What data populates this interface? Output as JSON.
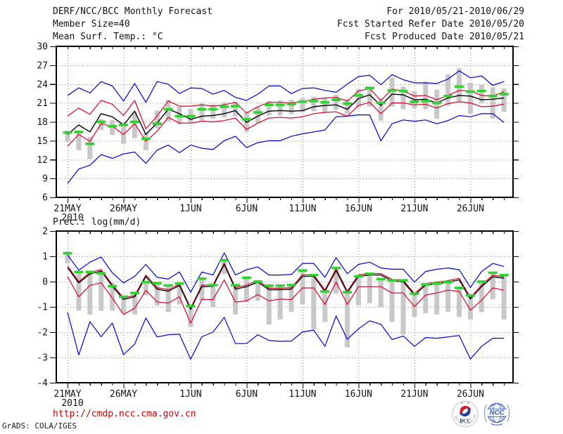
{
  "header": {
    "title": "DERF/NCC/BCC Monthly Forecast",
    "member_size": "Member Size=40",
    "period": "For 2010/05/21-2010/06/29",
    "refer_date": "Fcst Started Refer Date 2010/05/20",
    "produced_date": "Fcst Produced Date 2010/05/21"
  },
  "footer": {
    "url": "http://cmdp.ncc.cma.gov.cn",
    "credit": "GrADS: COLA/IGES",
    "logos": [
      {
        "label": "BCC",
        "ring_text": "BEIJING CLIMATE CENTER",
        "accent_red": "#d0202a",
        "accent_blue": "#1f3f9f"
      },
      {
        "label": "NCC",
        "color": "#2b50bf"
      }
    ]
  },
  "colors": {
    "envelope": "#0000d8",
    "spread": "#dc0028",
    "mean": "#000000",
    "obs": "#2fd32f",
    "bar": "#c8c8c8",
    "grid": "#8c8c8c",
    "frame": "#000000",
    "text": "#141414"
  },
  "chart_data": [
    {
      "type": "line",
      "title": "Mean Surf. Temp.: °C",
      "x_start": "2010/05/21",
      "x_end": "2010/06/29",
      "n_points": 40,
      "grid": true,
      "ylim": [
        6,
        30
      ],
      "yticks": [
        30,
        27,
        24,
        21,
        18,
        15,
        12,
        9,
        6
      ],
      "x_ticks": [
        {
          "label": "21MAY",
          "sub": "2010",
          "day": 0
        },
        {
          "label": "26MAY",
          "day": 5
        },
        {
          "label": "1JUN",
          "day": 11
        },
        {
          "label": "6JUN",
          "day": 16
        },
        {
          "label": "11JUN",
          "day": 21
        },
        {
          "label": "16JUN",
          "day": 26
        },
        {
          "label": "21JUN",
          "day": 31
        },
        {
          "label": "26JUN",
          "day": 36
        }
      ],
      "series": [
        {
          "name": "ensemble-max",
          "color": "#0000d8",
          "width": 1.2,
          "values": [
            22.2,
            23.4,
            22.6,
            24.4,
            23.7,
            21.3,
            24.1,
            21.1,
            24.4,
            24.0,
            22.5,
            23.4,
            23.3,
            22.4,
            23.0,
            21.9,
            21.4,
            22.4,
            23.7,
            23.7,
            22.5,
            23.3,
            23.4,
            23.0,
            22.7,
            24.0,
            25.2,
            25.4,
            23.9,
            25.5,
            24.7,
            24.2,
            24.2,
            24.1,
            24.8,
            26.1,
            25.0,
            25.3,
            23.8,
            24.4
          ]
        },
        {
          "name": "upper-spread",
          "color": "#dc0028",
          "width": 1.2,
          "values": [
            18.9,
            20.2,
            19.2,
            21.4,
            20.8,
            19.0,
            21.4,
            16.9,
            18.9,
            21.3,
            20.5,
            20.5,
            20.7,
            20.5,
            20.7,
            21.1,
            19.4,
            20.4,
            21.1,
            21.1,
            21.0,
            21.2,
            21.6,
            21.8,
            21.9,
            21.3,
            22.9,
            23.3,
            21.4,
            23.2,
            22.9,
            22.1,
            22.2,
            21.5,
            22.2,
            23.0,
            22.9,
            22.2,
            22.1,
            22.8
          ]
        },
        {
          "name": "ensemble-mean",
          "color": "#000000",
          "width": 1.4,
          "values": [
            16.0,
            17.5,
            16.4,
            19.3,
            18.8,
            17.5,
            19.7,
            16.0,
            17.8,
            20.0,
            19.3,
            18.4,
            18.9,
            19.0,
            19.3,
            19.8,
            17.9,
            18.9,
            19.7,
            19.8,
            19.7,
            19.8,
            20.4,
            20.6,
            20.7,
            20.0,
            21.7,
            22.3,
            20.6,
            22.4,
            22.3,
            21.5,
            21.6,
            21.0,
            21.8,
            22.2,
            22.1,
            21.5,
            21.6,
            21.8
          ]
        },
        {
          "name": "lower-spread",
          "color": "#dc0028",
          "width": 1.2,
          "values": [
            14.1,
            16.0,
            14.9,
            17.7,
            17.3,
            16.0,
            17.7,
            14.9,
            16.5,
            18.7,
            17.8,
            17.8,
            18.1,
            18.0,
            18.2,
            18.6,
            16.8,
            17.8,
            18.6,
            18.7,
            18.6,
            18.8,
            19.3,
            19.5,
            19.6,
            18.9,
            20.6,
            21.1,
            19.3,
            21.0,
            21.0,
            20.7,
            20.8,
            20.2,
            20.9,
            21.2,
            21.0,
            20.4,
            20.5,
            20.8
          ]
        },
        {
          "name": "ensemble-min",
          "color": "#0000d8",
          "width": 1.2,
          "values": [
            8.2,
            10.5,
            11.1,
            12.8,
            12.2,
            12.9,
            13.2,
            11.4,
            13.5,
            14.3,
            13.1,
            14.3,
            13.8,
            13.6,
            15.0,
            15.7,
            13.9,
            14.7,
            15.0,
            15.0,
            15.7,
            16.1,
            16.4,
            16.7,
            18.8,
            18.9,
            19.1,
            19.1,
            15.0,
            17.7,
            18.3,
            18.1,
            18.3,
            17.7,
            18.2,
            19.0,
            18.8,
            19.3,
            19.3,
            17.9
          ]
        }
      ],
      "markers": {
        "name": "climatology-dash",
        "color": "#2fd32f",
        "values": [
          16.3,
          16.4,
          14.5,
          18.0,
          17.3,
          17.5,
          18.0,
          15.3,
          17.7,
          20.0,
          18.9,
          18.9,
          20.0,
          20.0,
          20.4,
          20.5,
          18.4,
          19.5,
          20.7,
          20.7,
          20.8,
          21.2,
          21.3,
          21.1,
          21.5,
          20.9,
          22.2,
          23.4,
          21.0,
          23.0,
          22.9,
          21.2,
          21.3,
          21.0,
          22.1,
          23.6,
          22.8,
          22.9,
          22.1,
          22.4
        ]
      },
      "bars": {
        "name": "climatology-range",
        "color": "#c8c8c8",
        "ranges": [
          [
            14.8,
            16.6
          ],
          [
            13.5,
            16.5
          ],
          [
            12.1,
            15.6
          ],
          [
            16.7,
            18.4
          ],
          [
            15.9,
            18.3
          ],
          [
            14.5,
            17.8
          ],
          [
            15.4,
            19.5
          ],
          [
            13.5,
            16.2
          ],
          [
            17.0,
            19.8
          ],
          [
            18.1,
            21.5
          ],
          [
            17.6,
            20.4
          ],
          [
            17.8,
            20.0
          ],
          [
            18.2,
            21.0
          ],
          [
            18.5,
            20.8
          ],
          [
            18.7,
            21.1
          ],
          [
            18.9,
            21.2
          ],
          [
            16.4,
            19.5
          ],
          [
            17.8,
            20.4
          ],
          [
            19.0,
            21.3
          ],
          [
            19.0,
            21.4
          ],
          [
            19.2,
            21.5
          ],
          [
            19.5,
            21.8
          ],
          [
            19.7,
            22.0
          ],
          [
            19.5,
            21.8
          ],
          [
            19.9,
            22.3
          ],
          [
            19.3,
            21.6
          ],
          [
            20.3,
            23.2
          ],
          [
            20.4,
            23.6
          ],
          [
            18.2,
            21.7
          ],
          [
            20.4,
            25.0
          ],
          [
            20.0,
            23.6
          ],
          [
            20.2,
            22.9
          ],
          [
            20.0,
            24.4
          ],
          [
            18.5,
            23.1
          ],
          [
            20.6,
            25.5
          ],
          [
            21.1,
            26.5
          ],
          [
            19.3,
            24.2
          ],
          [
            21.0,
            23.9
          ],
          [
            18.5,
            23.5
          ],
          [
            19.6,
            23.3
          ]
        ]
      }
    },
    {
      "type": "line",
      "title": "Prec.: log(mm/d)",
      "x_start": "2010/05/21",
      "x_end": "2010/06/29",
      "n_points": 40,
      "grid": true,
      "ylim": [
        -4,
        2
      ],
      "yticks": [
        2,
        1,
        0,
        -1,
        -2,
        -3,
        -4
      ],
      "x_ticks": [
        {
          "label": "21MAY",
          "sub": "2010",
          "day": 0
        },
        {
          "label": "26MAY",
          "day": 5
        },
        {
          "label": "1JUN",
          "day": 11
        },
        {
          "label": "6JUN",
          "day": 16
        },
        {
          "label": "11JUN",
          "day": 21
        },
        {
          "label": "16JUN",
          "day": 26
        },
        {
          "label": "21JUN",
          "day": 31
        },
        {
          "label": "26JUN",
          "day": 36
        }
      ],
      "series": [
        {
          "name": "ensemble-max",
          "color": "#0000d8",
          "width": 1.2,
          "values": [
            1.05,
            0.45,
            0.77,
            0.97,
            0.35,
            -0.05,
            0.21,
            0.68,
            0.17,
            0.1,
            0.38,
            -0.42,
            0.38,
            0.26,
            1.14,
            0.26,
            0.47,
            0.58,
            0.26,
            0.26,
            0.28,
            0.72,
            0.72,
            0.17,
            0.95,
            0.31,
            0.68,
            0.77,
            0.54,
            0.49,
            0.49,
            -0.02,
            0.4,
            0.49,
            0.54,
            0.47,
            -0.23,
            0.4,
            0.72,
            0.6
          ]
        },
        {
          "name": "upper-spread",
          "color": "#dc0028",
          "width": 1.2,
          "values": [
            0.62,
            0.0,
            0.36,
            0.48,
            -0.12,
            -0.64,
            -0.55,
            0.26,
            -0.24,
            -0.32,
            -0.1,
            -1.04,
            -0.14,
            -0.13,
            0.73,
            -0.24,
            -0.14,
            0.04,
            -0.26,
            -0.26,
            -0.24,
            0.27,
            0.27,
            -0.33,
            0.5,
            -0.38,
            0.27,
            0.32,
            0.32,
            0.09,
            0.05,
            -0.47,
            -0.08,
            -0.02,
            0.04,
            0.13,
            -0.63,
            -0.14,
            0.25,
            0.2
          ]
        },
        {
          "name": "ensemble-mean",
          "color": "#000000",
          "width": 1.4,
          "values": [
            0.55,
            -0.05,
            0.3,
            0.42,
            -0.18,
            -0.7,
            -0.6,
            0.2,
            -0.3,
            -0.38,
            -0.15,
            -1.1,
            -0.2,
            -0.19,
            0.68,
            -0.3,
            -0.2,
            -0.02,
            -0.32,
            -0.32,
            -0.3,
            0.21,
            0.21,
            -0.39,
            0.44,
            -0.44,
            0.21,
            0.26,
            0.26,
            0.03,
            0.0,
            -0.53,
            -0.14,
            -0.08,
            -0.02,
            0.07,
            -0.69,
            -0.2,
            0.19,
            0.14
          ]
        },
        {
          "name": "lower-spread",
          "color": "#dc0028",
          "width": 1.2,
          "values": [
            0.2,
            -0.6,
            -0.15,
            -0.05,
            -0.65,
            -1.3,
            -1.05,
            -0.35,
            -0.8,
            -0.85,
            -0.6,
            -1.65,
            -0.7,
            -0.71,
            0.07,
            -0.81,
            -0.76,
            -0.51,
            -0.76,
            -0.69,
            -0.71,
            -0.25,
            -0.25,
            -0.9,
            -0.02,
            -0.9,
            -0.2,
            -0.2,
            -0.2,
            -0.45,
            -0.45,
            -0.99,
            -0.53,
            -0.45,
            -0.34,
            -0.39,
            -1.13,
            -0.74,
            -0.25,
            -0.34
          ]
        },
        {
          "name": "ensemble-min",
          "color": "#0000d8",
          "width": 1.2,
          "values": [
            -1.22,
            -2.9,
            -1.59,
            -2.18,
            -1.64,
            -2.89,
            -2.47,
            -1.44,
            -2.19,
            -2.1,
            -2.08,
            -3.07,
            -2.18,
            -2.0,
            -1.41,
            -2.45,
            -2.45,
            -2.1,
            -2.33,
            -2.36,
            -2.35,
            -1.99,
            -1.92,
            -2.56,
            -1.36,
            -2.28,
            -1.87,
            -1.55,
            -1.69,
            -2.29,
            -2.15,
            -2.56,
            -2.21,
            -2.24,
            -2.19,
            -2.13,
            -3.06,
            -2.56,
            -2.24,
            -2.24
          ]
        }
      ],
      "markers": {
        "name": "climatology-dash",
        "color": "#2fd32f",
        "values": [
          1.12,
          0.38,
          0.38,
          0.33,
          -0.18,
          -0.6,
          -0.45,
          -0.02,
          -0.06,
          -0.15,
          -0.08,
          -0.97,
          0.12,
          -0.14,
          0.84,
          -0.14,
          0.15,
          0.0,
          -0.16,
          -0.16,
          -0.14,
          0.44,
          0.26,
          -0.39,
          0.54,
          -0.42,
          0.21,
          0.31,
          0.1,
          0.05,
          0.05,
          -0.48,
          -0.11,
          -0.08,
          -0.02,
          -0.25,
          -0.55,
          0.0,
          0.35,
          0.26
        ]
      },
      "bars": {
        "name": "climatology-range",
        "color": "#c8c8c8",
        "ranges": [
          [
            0.72,
            1.2
          ],
          [
            -1.15,
            0.38
          ],
          [
            -1.3,
            0.38
          ],
          [
            -1.15,
            0.33
          ],
          [
            -1.15,
            -0.05
          ],
          [
            -1.25,
            -0.55
          ],
          [
            -1.3,
            -0.4
          ],
          [
            -0.55,
            0.0
          ],
          [
            -0.95,
            -0.05
          ],
          [
            -1.2,
            -0.15
          ],
          [
            -0.9,
            -0.08
          ],
          [
            -1.8,
            -0.95
          ],
          [
            -0.75,
            0.12
          ],
          [
            -1.0,
            -0.1
          ],
          [
            0.3,
            0.9
          ],
          [
            -1.3,
            -0.1
          ],
          [
            -0.8,
            0.21
          ],
          [
            -0.75,
            0.05
          ],
          [
            -1.7,
            -0.15
          ],
          [
            -1.5,
            -0.15
          ],
          [
            -1.2,
            -0.12
          ],
          [
            -0.9,
            0.49
          ],
          [
            -1.9,
            0.26
          ],
          [
            -1.6,
            -0.35
          ],
          [
            -0.48,
            0.58
          ],
          [
            -2.6,
            -0.39
          ],
          [
            -0.94,
            0.26
          ],
          [
            -0.85,
            0.3
          ],
          [
            -1.0,
            0.1
          ],
          [
            -1.6,
            0.05
          ],
          [
            -2.1,
            0.05
          ],
          [
            -1.4,
            -0.45
          ],
          [
            -1.25,
            -0.1
          ],
          [
            -1.3,
            -0.05
          ],
          [
            -1.2,
            0.0
          ],
          [
            -1.4,
            -0.2
          ],
          [
            -1.5,
            -0.5
          ],
          [
            -1.2,
            0.0
          ],
          [
            -0.7,
            0.35
          ],
          [
            -1.5,
            0.3
          ]
        ]
      }
    }
  ]
}
